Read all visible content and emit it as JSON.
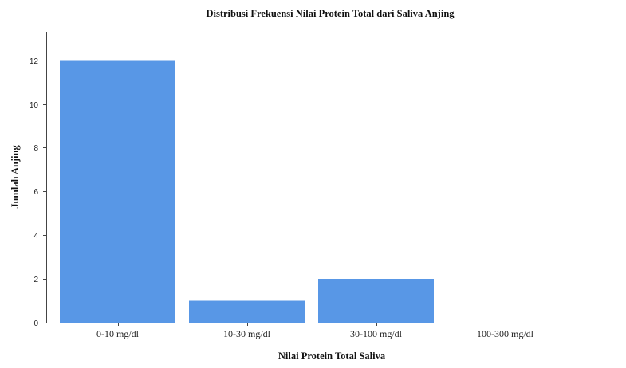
{
  "chart_data": {
    "type": "bar",
    "title": "Distribusi Frekuensi Nilai Protein Total dari Saliva Anjing",
    "xlabel": "Nilai Protein Total Saliva",
    "ylabel": "Jumlah Anjing",
    "categories": [
      "0-10 mg/dl",
      "10-30 mg/dl",
      "30-100 mg/dl",
      "100-300 mg/dl"
    ],
    "values": [
      12,
      1,
      2,
      0
    ],
    "ylim": [
      0,
      13.3
    ],
    "yticks": [
      0,
      2,
      4,
      6,
      8,
      10,
      12
    ],
    "grid": false,
    "legend": "none",
    "bar_color": "#5897E6"
  }
}
